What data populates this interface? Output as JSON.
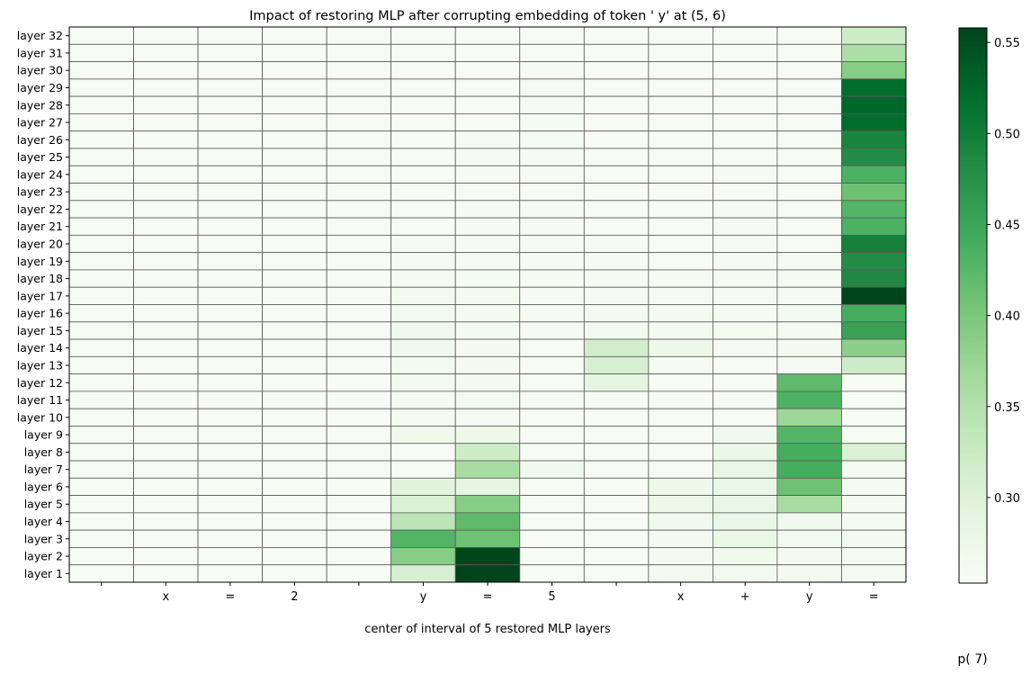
{
  "chart_data": {
    "type": "heatmap",
    "title": "Impact of restoring MLP after corrupting embedding of token ' y' at (5, 6)",
    "xlabel": "center of interval of 5 restored MLP layers",
    "colorbar_label": "p( 7)",
    "x_tick_labels": [
      "",
      "x",
      "=",
      "2",
      "",
      "y",
      "=",
      "5",
      "",
      "x",
      "+",
      "y",
      "="
    ],
    "y_tick_labels": [
      "layer 32",
      "layer 31",
      "layer 30",
      "layer 29",
      "layer 28",
      "layer 27",
      "layer 26",
      "layer 25",
      "layer 24",
      "layer 23",
      "layer 22",
      "layer 21",
      "layer 20",
      "layer 19",
      "layer 18",
      "layer 17",
      "layer 16",
      "layer 15",
      "layer 14",
      "layer 13",
      "layer 12",
      "layer 11",
      "layer 10",
      "layer 9",
      "layer 8",
      "layer 7",
      "layer 6",
      "layer 5",
      "layer 4",
      "layer 3",
      "layer 2",
      "layer 1"
    ],
    "colorbar_ticks": [
      "0.30",
      "0.35",
      "0.40",
      "0.45",
      "0.50",
      "0.55"
    ],
    "colorbar_tick_values": [
      0.3,
      0.35,
      0.4,
      0.45,
      0.5,
      0.55
    ],
    "vmin": 0.253,
    "vmax": 0.558,
    "colormap": "Greens",
    "grid_lines": true,
    "grid_color": "#5a5a5a",
    "values": [
      [
        0.256,
        0.256,
        0.256,
        0.256,
        0.256,
        0.256,
        0.256,
        0.256,
        0.256,
        0.256,
        0.256,
        0.256,
        0.32
      ],
      [
        0.256,
        0.256,
        0.256,
        0.256,
        0.256,
        0.256,
        0.256,
        0.256,
        0.256,
        0.256,
        0.256,
        0.256,
        0.355
      ],
      [
        0.256,
        0.256,
        0.256,
        0.256,
        0.256,
        0.256,
        0.256,
        0.258,
        0.256,
        0.256,
        0.256,
        0.256,
        0.39
      ],
      [
        0.256,
        0.256,
        0.256,
        0.256,
        0.256,
        0.256,
        0.256,
        0.259,
        0.256,
        0.256,
        0.256,
        0.256,
        0.52
      ],
      [
        0.256,
        0.256,
        0.256,
        0.256,
        0.256,
        0.256,
        0.256,
        0.259,
        0.256,
        0.256,
        0.256,
        0.256,
        0.525
      ],
      [
        0.256,
        0.256,
        0.256,
        0.256,
        0.256,
        0.256,
        0.256,
        0.259,
        0.256,
        0.256,
        0.256,
        0.256,
        0.52
      ],
      [
        0.256,
        0.256,
        0.256,
        0.256,
        0.256,
        0.256,
        0.257,
        0.259,
        0.256,
        0.256,
        0.256,
        0.256,
        0.49
      ],
      [
        0.256,
        0.256,
        0.256,
        0.256,
        0.256,
        0.256,
        0.257,
        0.259,
        0.256,
        0.256,
        0.256,
        0.256,
        0.48
      ],
      [
        0.256,
        0.256,
        0.256,
        0.256,
        0.256,
        0.256,
        0.258,
        0.258,
        0.256,
        0.256,
        0.257,
        0.256,
        0.435
      ],
      [
        0.256,
        0.256,
        0.256,
        0.256,
        0.256,
        0.256,
        0.257,
        0.257,
        0.256,
        0.256,
        0.257,
        0.256,
        0.41
      ],
      [
        0.256,
        0.256,
        0.256,
        0.256,
        0.256,
        0.256,
        0.257,
        0.257,
        0.256,
        0.256,
        0.257,
        0.256,
        0.43
      ],
      [
        0.256,
        0.256,
        0.256,
        0.256,
        0.256,
        0.256,
        0.258,
        0.257,
        0.256,
        0.256,
        0.258,
        0.256,
        0.435
      ],
      [
        0.256,
        0.256,
        0.256,
        0.256,
        0.256,
        0.257,
        0.258,
        0.257,
        0.257,
        0.256,
        0.258,
        0.256,
        0.495
      ],
      [
        0.256,
        0.256,
        0.256,
        0.256,
        0.256,
        0.257,
        0.259,
        0.257,
        0.257,
        0.256,
        0.258,
        0.257,
        0.48
      ],
      [
        0.256,
        0.256,
        0.256,
        0.256,
        0.256,
        0.258,
        0.26,
        0.257,
        0.258,
        0.257,
        0.258,
        0.257,
        0.485
      ],
      [
        0.256,
        0.256,
        0.256,
        0.256,
        0.256,
        0.262,
        0.262,
        0.258,
        0.259,
        0.258,
        0.258,
        0.258,
        0.558
      ],
      [
        0.256,
        0.256,
        0.256,
        0.256,
        0.256,
        0.265,
        0.262,
        0.258,
        0.262,
        0.262,
        0.26,
        0.265,
        0.44
      ],
      [
        0.256,
        0.256,
        0.256,
        0.256,
        0.256,
        0.268,
        0.262,
        0.258,
        0.262,
        0.262,
        0.26,
        0.26,
        0.455
      ],
      [
        0.256,
        0.256,
        0.256,
        0.256,
        0.256,
        0.268,
        0.262,
        0.256,
        0.315,
        0.275,
        0.258,
        0.262,
        0.385
      ],
      [
        0.256,
        0.256,
        0.256,
        0.256,
        0.256,
        0.266,
        0.262,
        0.256,
        0.31,
        0.258,
        0.256,
        0.258,
        0.32
      ],
      [
        0.256,
        0.256,
        0.256,
        0.256,
        0.256,
        0.262,
        0.262,
        0.256,
        0.29,
        0.256,
        0.256,
        0.42,
        0.254
      ],
      [
        0.256,
        0.256,
        0.256,
        0.256,
        0.256,
        0.262,
        0.262,
        0.256,
        0.256,
        0.256,
        0.256,
        0.435,
        0.254
      ],
      [
        0.256,
        0.256,
        0.256,
        0.256,
        0.256,
        0.26,
        0.258,
        0.256,
        0.256,
        0.256,
        0.256,
        0.37,
        0.254
      ],
      [
        0.256,
        0.256,
        0.256,
        0.256,
        0.256,
        0.27,
        0.275,
        0.256,
        0.256,
        0.256,
        0.268,
        0.43,
        0.256
      ],
      [
        0.256,
        0.256,
        0.256,
        0.256,
        0.256,
        0.256,
        0.32,
        0.256,
        0.256,
        0.256,
        0.278,
        0.44,
        0.305
      ],
      [
        0.256,
        0.256,
        0.256,
        0.256,
        0.256,
        0.256,
        0.36,
        0.268,
        0.256,
        0.256,
        0.285,
        0.44,
        0.26
      ],
      [
        0.256,
        0.256,
        0.256,
        0.256,
        0.256,
        0.295,
        0.29,
        0.256,
        0.256,
        0.272,
        0.282,
        0.41,
        0.26
      ],
      [
        0.256,
        0.256,
        0.256,
        0.256,
        0.256,
        0.305,
        0.39,
        0.256,
        0.256,
        0.275,
        0.28,
        0.36,
        0.26
      ],
      [
        0.256,
        0.256,
        0.256,
        0.256,
        0.256,
        0.34,
        0.42,
        0.256,
        0.256,
        0.268,
        0.28,
        0.268,
        0.26
      ],
      [
        0.256,
        0.256,
        0.256,
        0.256,
        0.256,
        0.43,
        0.41,
        0.256,
        0.256,
        0.262,
        0.282,
        0.265,
        0.262
      ],
      [
        0.256,
        0.256,
        0.256,
        0.256,
        0.256,
        0.39,
        0.558,
        0.256,
        0.256,
        0.262,
        0.27,
        0.262,
        0.26
      ],
      [
        0.256,
        0.256,
        0.256,
        0.256,
        0.256,
        0.31,
        0.558,
        0.256,
        0.256,
        0.262,
        0.266,
        0.262,
        0.26
      ]
    ]
  }
}
